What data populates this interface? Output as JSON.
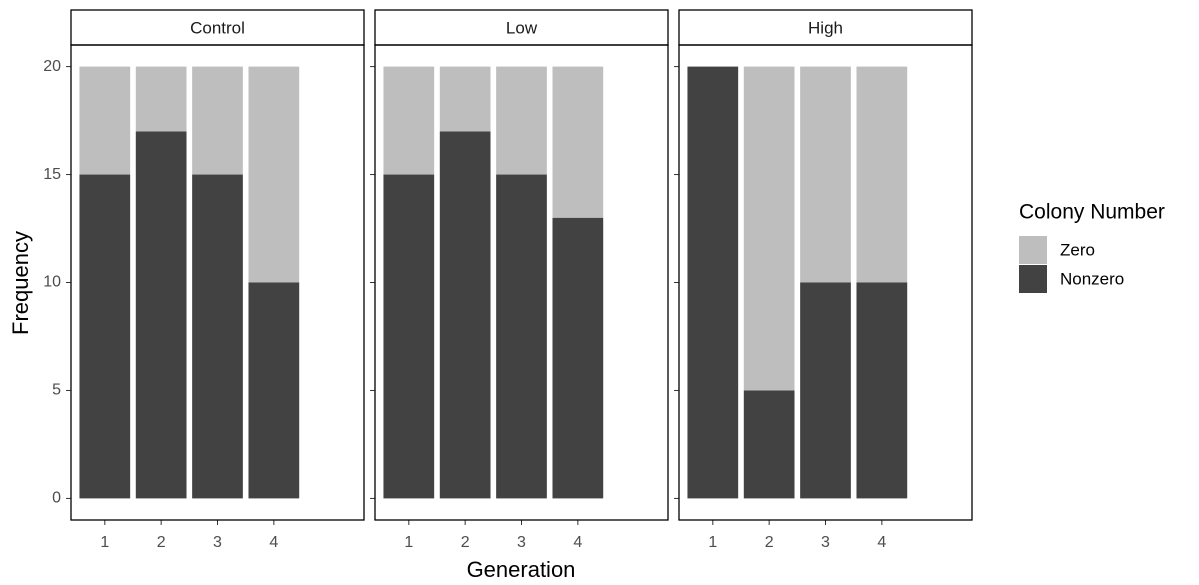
{
  "chart_data": {
    "type": "bar",
    "stacked": true,
    "x_label": "Generation",
    "y_label": "Frequency",
    "legend_title": "Colony Number",
    "facets": [
      "Control",
      "Low",
      "High"
    ],
    "categories": [
      "1",
      "2",
      "3",
      "4"
    ],
    "series": [
      {
        "name": "Zero",
        "color": "#bebebe",
        "values": [
          [
            5,
            3,
            5,
            10
          ],
          [
            5,
            3,
            5,
            7
          ],
          [
            0,
            15,
            10,
            10
          ]
        ]
      },
      {
        "name": "Nonzero",
        "color": "#424242",
        "values": [
          [
            15,
            17,
            15,
            10
          ],
          [
            15,
            17,
            15,
            13
          ],
          [
            20,
            5,
            10,
            10
          ]
        ]
      }
    ],
    "ylim": [
      -1,
      21
    ],
    "yticks": [
      0,
      5,
      10,
      15,
      20
    ]
  }
}
